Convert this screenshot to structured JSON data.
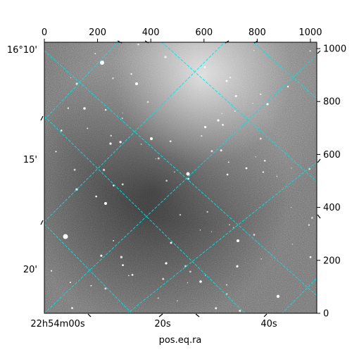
{
  "chart_data": {
    "type": "heatmap",
    "xlabel": "pos.eq.ra",
    "ylabel": "",
    "pixel_axis": {
      "x_ticks": [
        "0",
        "200",
        "400",
        "600",
        "800",
        "1000"
      ],
      "x_values": [
        0,
        200,
        400,
        600,
        800,
        1000
      ],
      "y_ticks": [
        "0",
        "200",
        "400",
        "600",
        "800",
        "1000"
      ],
      "y_values": [
        0,
        200,
        400,
        600,
        800,
        1000
      ],
      "xlim": [
        0,
        1024
      ],
      "ylim": [
        0,
        1024
      ]
    },
    "world_axis": {
      "ra_ticks": [
        "22h54m00s",
        "20s",
        "40s"
      ],
      "dec_ticks": [
        "16°10'",
        "15'",
        "20'"
      ]
    },
    "grid": true,
    "grid_color": "#00e5e5",
    "colormap": "gray",
    "colors": {
      "frame": "#000000",
      "background": "#ffffff"
    }
  }
}
